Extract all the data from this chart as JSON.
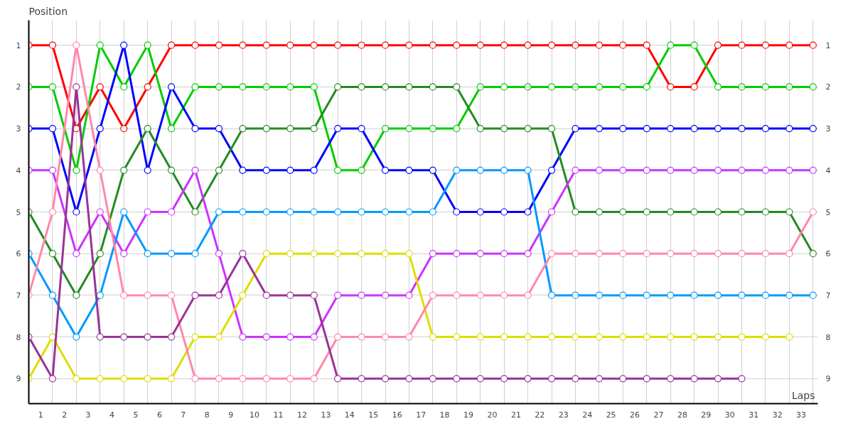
{
  "chart_data": {
    "type": "line",
    "xlabel": "Laps",
    "ylabel": "Position",
    "x": [
      0,
      1,
      2,
      3,
      4,
      5,
      6,
      7,
      8,
      9,
      10,
      11,
      12,
      13,
      14,
      15,
      16,
      17,
      18,
      19,
      20,
      21,
      22,
      23,
      24,
      25,
      26,
      27,
      28,
      29,
      30,
      31,
      32,
      33
    ],
    "xlim": [
      0,
      33.2
    ],
    "xticks": [
      {
        "value": 0,
        "label": null
      },
      {
        "value": 0.5,
        "label": "1"
      },
      {
        "value": 1,
        "label": null
      },
      {
        "value": 1.5,
        "label": "2"
      },
      {
        "value": 2,
        "label": null
      },
      {
        "value": 2.5,
        "label": "3"
      },
      {
        "value": 3,
        "label": null
      },
      {
        "value": 3.5,
        "label": "4"
      },
      {
        "value": 4,
        "label": null
      },
      {
        "value": 4.5,
        "label": "5"
      },
      {
        "value": 5,
        "label": null
      },
      {
        "value": 5.5,
        "label": "6"
      },
      {
        "value": 6,
        "label": null
      },
      {
        "value": 6.5,
        "label": "7"
      },
      {
        "value": 7,
        "label": null
      },
      {
        "value": 7.5,
        "label": "8"
      },
      {
        "value": 8,
        "label": null
      },
      {
        "value": 8.5,
        "label": "9"
      },
      {
        "value": 9,
        "label": null
      },
      {
        "value": 9.5,
        "label": "10"
      },
      {
        "value": 10,
        "label": null
      },
      {
        "value": 10.5,
        "label": "11"
      },
      {
        "value": 11,
        "label": null
      },
      {
        "value": 11.5,
        "label": "12"
      },
      {
        "value": 12,
        "label": null
      },
      {
        "value": 12.5,
        "label": "13"
      },
      {
        "value": 13,
        "label": null
      },
      {
        "value": 13.5,
        "label": "14"
      },
      {
        "value": 14,
        "label": null
      },
      {
        "value": 14.5,
        "label": "15"
      },
      {
        "value": 15,
        "label": null
      },
      {
        "value": 15.5,
        "label": "16"
      },
      {
        "value": 16,
        "label": null
      },
      {
        "value": 16.5,
        "label": "17"
      },
      {
        "value": 17,
        "label": null
      },
      {
        "value": 17.5,
        "label": "18"
      },
      {
        "value": 18,
        "label": null
      },
      {
        "value": 18.5,
        "label": "19"
      },
      {
        "value": 19,
        "label": null
      },
      {
        "value": 19.5,
        "label": "20"
      },
      {
        "value": 20,
        "label": null
      },
      {
        "value": 20.5,
        "label": "21"
      },
      {
        "value": 21,
        "label": null
      },
      {
        "value": 21.5,
        "label": "22"
      },
      {
        "value": 22,
        "label": null
      },
      {
        "value": 22.5,
        "label": "23"
      },
      {
        "value": 23,
        "label": null
      },
      {
        "value": 23.5,
        "label": "24"
      },
      {
        "value": 24,
        "label": null
      },
      {
        "value": 24.5,
        "label": "25"
      },
      {
        "value": 25,
        "label": null
      },
      {
        "value": 25.5,
        "label": "26"
      },
      {
        "value": 26,
        "label": null
      },
      {
        "value": 26.5,
        "label": "27"
      },
      {
        "value": 27,
        "label": null
      },
      {
        "value": 27.5,
        "label": "28"
      },
      {
        "value": 28,
        "label": null
      },
      {
        "value": 28.5,
        "label": "29"
      },
      {
        "value": 29,
        "label": null
      },
      {
        "value": 29.5,
        "label": "30"
      },
      {
        "value": 30,
        "label": null
      },
      {
        "value": 30.5,
        "label": "31"
      },
      {
        "value": 31,
        "label": null
      },
      {
        "value": 31.5,
        "label": "32"
      },
      {
        "value": 32,
        "label": null
      },
      {
        "value": 32.5,
        "label": "33"
      },
      {
        "value": 33,
        "label": null
      }
    ],
    "ylim": [
      9.6,
      0.4
    ],
    "yticks": [
      1,
      2,
      3,
      4,
      5,
      6,
      7,
      8,
      9
    ],
    "y2lim": [
      9.6,
      0.4
    ],
    "y2ticks": [
      1,
      2,
      3,
      4,
      5,
      6,
      7,
      8,
      9
    ],
    "grid": true,
    "marker": "circle",
    "line_style": "solid",
    "series": [
      {
        "color": "#ff0000",
        "values": [
          1,
          1,
          3,
          2,
          3,
          2,
          1,
          1,
          1,
          1,
          1,
          1,
          1,
          1,
          1,
          1,
          1,
          1,
          1,
          1,
          1,
          1,
          1,
          1,
          1,
          1,
          1,
          2,
          2,
          1,
          1,
          1,
          1,
          1
        ]
      },
      {
        "color": "#00cc00",
        "values": [
          2,
          2,
          4,
          1,
          2,
          1,
          3,
          2,
          2,
          2,
          2,
          2,
          2,
          4,
          4,
          3,
          3,
          3,
          3,
          2,
          2,
          2,
          2,
          2,
          2,
          2,
          2,
          1,
          1,
          2,
          2,
          2,
          2,
          2
        ]
      },
      {
        "color": "#0000ff",
        "values": [
          3,
          3,
          5,
          3,
          1,
          4,
          2,
          3,
          3,
          4,
          4,
          4,
          4,
          3,
          3,
          4,
          4,
          4,
          5,
          5,
          5,
          5,
          4,
          3,
          3,
          3,
          3,
          3,
          3,
          3,
          3,
          3,
          3,
          3
        ]
      },
      {
        "color": "#228b22",
        "values": [
          5,
          6,
          7,
          6,
          4,
          3,
          4,
          5,
          4,
          3,
          3,
          3,
          3,
          2,
          2,
          2,
          2,
          2,
          2,
          3,
          3,
          3,
          3,
          5,
          5,
          5,
          5,
          5,
          5,
          5,
          5,
          5,
          5,
          6
        ]
      },
      {
        "color": "#cc33ff",
        "values": [
          4,
          4,
          6,
          5,
          6,
          5,
          5,
          4,
          6,
          8,
          8,
          8,
          8,
          7,
          7,
          7,
          7,
          6,
          6,
          6,
          6,
          6,
          5,
          4,
          4,
          4,
          4,
          4,
          4,
          4,
          4,
          4,
          4,
          4
        ]
      },
      {
        "color": "#0099ff",
        "values": [
          6,
          7,
          8,
          7,
          5,
          6,
          6,
          6,
          5,
          5,
          5,
          5,
          5,
          5,
          5,
          5,
          5,
          5,
          4,
          4,
          4,
          4,
          7,
          7,
          7,
          7,
          7,
          7,
          7,
          7,
          7,
          7,
          7,
          7
        ]
      },
      {
        "color": "#dddd00",
        "values": [
          9,
          8,
          9,
          9,
          9,
          9,
          9,
          8,
          8,
          7,
          6,
          6,
          6,
          6,
          6,
          6,
          6,
          8,
          8,
          8,
          8,
          8,
          8,
          8,
          8,
          8,
          8,
          8,
          8,
          8,
          8,
          8,
          8,
          null
        ]
      },
      {
        "color": "#ff88aa",
        "values": [
          7,
          5,
          1,
          4,
          7,
          7,
          7,
          9,
          9,
          9,
          9,
          9,
          9,
          8,
          8,
          8,
          8,
          7,
          7,
          7,
          7,
          7,
          6,
          6,
          6,
          6,
          6,
          6,
          6,
          6,
          6,
          6,
          6,
          5
        ]
      },
      {
        "color": "#993399",
        "values": [
          8,
          9,
          2,
          8,
          8,
          8,
          8,
          7,
          7,
          6,
          7,
          7,
          7,
          9,
          9,
          9,
          9,
          9,
          9,
          9,
          9,
          9,
          9,
          9,
          9,
          9,
          9,
          9,
          9,
          9,
          9,
          null,
          null,
          null
        ]
      }
    ]
  }
}
